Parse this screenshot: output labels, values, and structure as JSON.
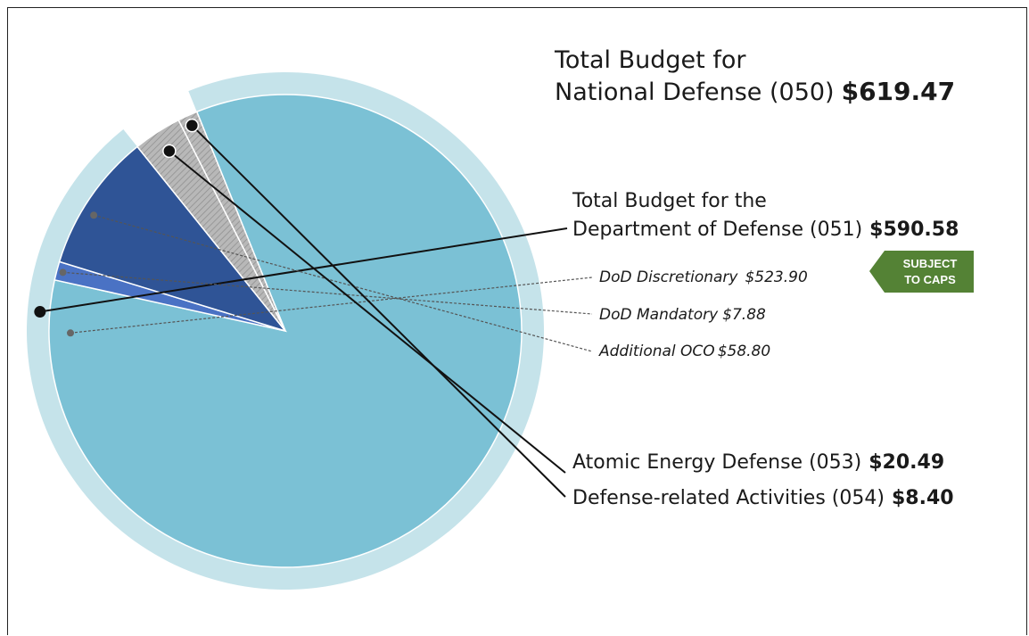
{
  "chart_data": {
    "type": "pie",
    "units": "$",
    "total": {
      "line1": "Total Budget for",
      "line2": "National Defense (050)",
      "value_label": "$619.47",
      "value": 619.47
    },
    "outer_ring": {
      "line1": "Total Budget for the",
      "line2": "Department of Defense (051)",
      "value_label": "$590.58",
      "value": 590.58
    },
    "slices": [
      {
        "key": "disc",
        "name": "DoD Discretionary",
        "value_label": "$523.90",
        "value": 523.9,
        "color": "#7bc1d5"
      },
      {
        "key": "mand",
        "name": "DoD Mandatory",
        "value_label": "$7.88",
        "value": 7.88,
        "color": "#4a72c4"
      },
      {
        "key": "oco",
        "name": "Additional OCO",
        "value_label": "$58.80",
        "value": 58.8,
        "color": "#2f5496"
      },
      {
        "key": "atomic",
        "name": "Atomic Energy Defense (053)",
        "value_label": "$20.49",
        "value": 20.49,
        "color": "#a6a6a6"
      },
      {
        "key": "related",
        "name": "Defense-related Activities (054)",
        "value_label": "$8.40",
        "value": 8.4,
        "color": "#bdbdbd"
      }
    ],
    "badge": {
      "line1": "SUBJECT",
      "line2": "TO CAPS",
      "color": "#548235"
    },
    "colors": {
      "ring": "#c5e3ea",
      "separator": "#ffffff",
      "label_text": "#1a1a1a",
      "leader_dashed": "#555555"
    }
  }
}
